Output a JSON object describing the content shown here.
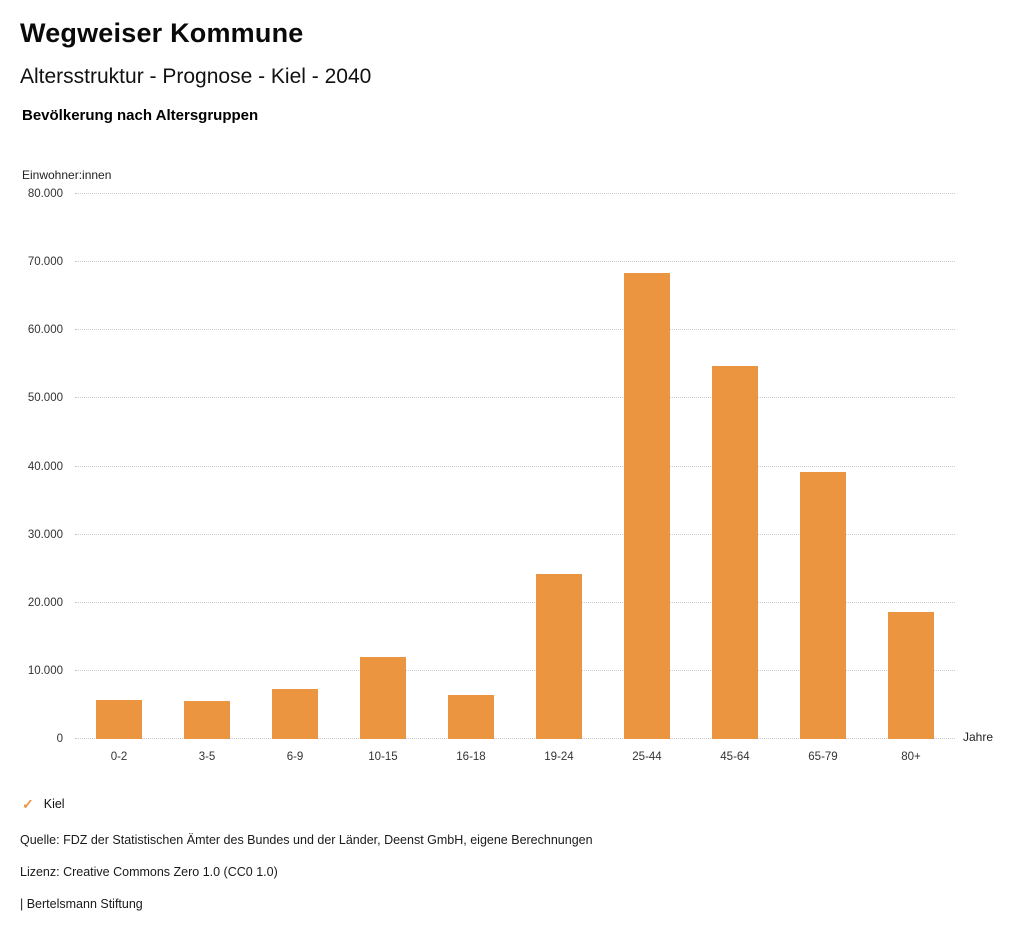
{
  "header": {
    "title": "Wegweiser Kommune",
    "subtitle": "Altersstruktur - Prognose - Kiel - 2040",
    "section_title": "Bevölkerung nach Altersgruppen"
  },
  "chart_data": {
    "type": "bar",
    "title": "Bevölkerung nach Altersgruppen",
    "ylabel": "Einwohner:innen",
    "xlabel": "Jahre",
    "categories": [
      "0-2",
      "3-5",
      "6-9",
      "10-15",
      "16-18",
      "19-24",
      "25-44",
      "45-64",
      "65-79",
      "80+"
    ],
    "series": [
      {
        "name": "Kiel",
        "values": [
          5700,
          5600,
          7400,
          12100,
          6500,
          24200,
          68400,
          54700,
          39200,
          18600
        ]
      }
    ],
    "ylim": [
      0,
      80000
    ],
    "yticks": [
      {
        "value": 0,
        "label": "0"
      },
      {
        "value": 10000,
        "label": "10.000"
      },
      {
        "value": 20000,
        "label": "20.000"
      },
      {
        "value": 30000,
        "label": "30.000"
      },
      {
        "value": 40000,
        "label": "40.000"
      },
      {
        "value": 50000,
        "label": "50.000"
      },
      {
        "value": 60000,
        "label": "60.000"
      },
      {
        "value": 70000,
        "label": "70.000"
      },
      {
        "value": 80000,
        "label": "80.000"
      }
    ],
    "grid": "horizontal-dotted",
    "legend_position": "bottom-left",
    "bar_color": "#EC9540"
  },
  "legend": {
    "marker": "✓",
    "label": "Kiel",
    "color": "#EC9540"
  },
  "footer": {
    "source": "Quelle: FDZ der Statistischen Ämter des Bundes und der Länder, Deenst GmbH, eigene Berechnungen",
    "license": "Lizenz: Creative Commons Zero 1.0 (CC0 1.0)",
    "attribution": "| Bertelsmann Stiftung"
  }
}
